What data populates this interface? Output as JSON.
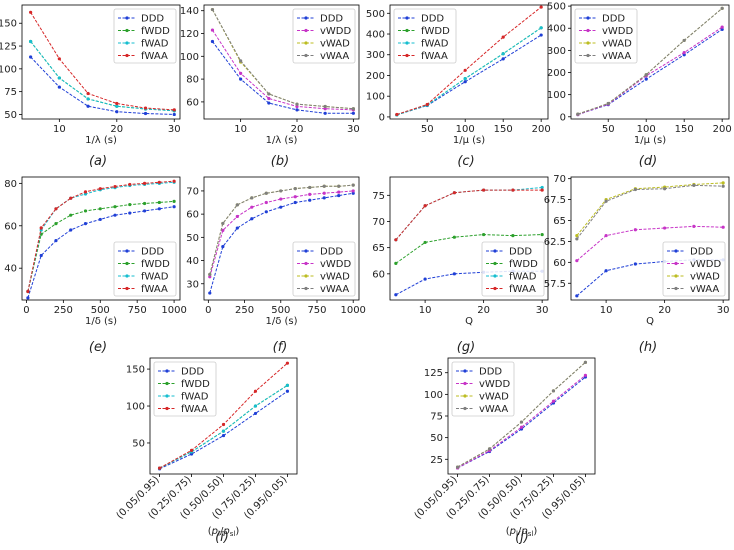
{
  "legend_sets": {
    "f": [
      "DDD",
      "fWDD",
      "fWAD",
      "fWAA"
    ],
    "v": [
      "DDD",
      "vWDD",
      "vWAD",
      "vWAA"
    ]
  },
  "colors": {
    "DDD": "#1f3fd6",
    "fWDD": "#2ca02c",
    "fWAD": "#17becf",
    "fWAA": "#d62728",
    "vWDD": "#c734c7",
    "vWAD": "#bcbd22",
    "vWAA": "#7f7f7f"
  },
  "chart_data": [
    {
      "id": "a",
      "caption": "(a)",
      "type": "line",
      "xlabel": "1/λ (s)",
      "ylabel": "",
      "xlim": [
        3.5,
        31
      ],
      "ylim": [
        45,
        170
      ],
      "xticks": [
        10,
        20,
        30
      ],
      "yticks": [
        50,
        75,
        100,
        125,
        150
      ],
      "x": [
        5,
        10,
        15,
        20,
        25,
        30
      ],
      "legend": "top-right",
      "legend_set": "f",
      "series": [
        {
          "name": "DDD",
          "values": [
            113,
            80,
            59,
            53,
            51,
            50
          ]
        },
        {
          "name": "fWDD",
          "values": [
            130,
            90,
            67,
            59,
            56,
            54
          ]
        },
        {
          "name": "fWAD",
          "values": [
            130,
            90,
            67,
            59,
            56,
            54
          ]
        },
        {
          "name": "fWAA",
          "values": [
            162,
            111,
            73,
            62,
            57,
            55
          ]
        }
      ]
    },
    {
      "id": "b",
      "caption": "(b)",
      "type": "line",
      "xlabel": "1/λ (s)",
      "ylabel": "",
      "xlim": [
        3.5,
        31
      ],
      "ylim": [
        45,
        145
      ],
      "xticks": [
        10,
        20,
        30
      ],
      "yticks": [
        60,
        80,
        100,
        120,
        140
      ],
      "x": [
        5,
        10,
        15,
        20,
        25,
        30
      ],
      "legend": "top-right",
      "legend_set": "v",
      "series": [
        {
          "name": "DDD",
          "values": [
            113,
            80,
            59,
            53,
            50,
            50
          ]
        },
        {
          "name": "vWDD",
          "values": [
            123,
            85,
            63,
            56,
            54,
            53
          ]
        },
        {
          "name": "vWAD",
          "values": [
            141,
            95,
            67,
            58,
            56,
            54
          ]
        },
        {
          "name": "vWAA",
          "values": [
            141,
            96,
            67,
            58,
            56,
            54
          ]
        }
      ]
    },
    {
      "id": "c",
      "caption": "(c)",
      "type": "line",
      "xlabel": "1/μ (s)",
      "ylabel": "",
      "xlim": [
        1,
        209
      ],
      "ylim": [
        -10,
        540
      ],
      "xticks": [
        50,
        100,
        150,
        200
      ],
      "yticks": [
        0,
        100,
        200,
        300,
        400,
        500
      ],
      "x": [
        10,
        50,
        100,
        150,
        200
      ],
      "legend": "top-left",
      "legend_set": "f",
      "series": [
        {
          "name": "DDD",
          "values": [
            10,
            55,
            170,
            280,
            395
          ]
        },
        {
          "name": "fWDD",
          "values": [
            10,
            57,
            185,
            305,
            430
          ]
        },
        {
          "name": "fWAD",
          "values": [
            10,
            57,
            185,
            305,
            430
          ]
        },
        {
          "name": "fWAA",
          "values": [
            12,
            60,
            225,
            385,
            530
          ]
        }
      ]
    },
    {
      "id": "d",
      "caption": "(d)",
      "type": "line",
      "xlabel": "1/μ (s)",
      "ylabel": "",
      "xlim": [
        1,
        209
      ],
      "ylim": [
        -10,
        505
      ],
      "xticks": [
        50,
        100,
        150,
        200
      ],
      "yticks": [
        0,
        100,
        200,
        300,
        400,
        500
      ],
      "x": [
        10,
        50,
        100,
        150,
        200
      ],
      "legend": "top-left",
      "legend_set": "v",
      "series": [
        {
          "name": "DDD",
          "values": [
            10,
            55,
            170,
            280,
            395
          ]
        },
        {
          "name": "vWDD",
          "values": [
            10,
            57,
            185,
            290,
            405
          ]
        },
        {
          "name": "vWAD",
          "values": [
            12,
            60,
            190,
            345,
            490
          ]
        },
        {
          "name": "vWAA",
          "values": [
            12,
            60,
            190,
            345,
            490
          ]
        }
      ]
    },
    {
      "id": "e",
      "caption": "(e)",
      "type": "line",
      "xlabel": "1/δ (s)",
      "ylabel": "",
      "xlim": [
        -30,
        1040
      ],
      "ylim": [
        25,
        83
      ],
      "xticks": [
        0,
        250,
        500,
        750,
        1000
      ],
      "yticks": [
        40,
        60,
        80
      ],
      "x": [
        10,
        100,
        200,
        300,
        400,
        500,
        600,
        700,
        800,
        900,
        1000
      ],
      "legend": "bottom-right",
      "legend_set": "f",
      "series": [
        {
          "name": "DDD",
          "values": [
            26,
            46,
            53,
            58,
            61,
            63,
            65,
            66,
            67,
            68,
            69
          ]
        },
        {
          "name": "fWDD",
          "values": [
            29,
            56,
            61,
            65,
            67,
            68,
            69,
            70,
            70.5,
            71,
            71.5
          ]
        },
        {
          "name": "fWAD",
          "values": [
            29,
            58,
            68,
            73,
            75,
            77,
            78,
            79,
            79.5,
            80,
            80.5
          ]
        },
        {
          "name": "fWAA",
          "values": [
            29,
            59,
            68,
            73,
            76,
            77.5,
            78.5,
            79.5,
            80,
            80.5,
            81
          ]
        }
      ]
    },
    {
      "id": "f",
      "caption": "(f)",
      "type": "line",
      "xlabel": "1/δ (s)",
      "ylabel": "",
      "xlim": [
        -30,
        1040
      ],
      "ylim": [
        23,
        76
      ],
      "xticks": [
        0,
        250,
        500,
        750,
        1000
      ],
      "yticks": [
        30,
        40,
        50,
        60,
        70
      ],
      "x": [
        10,
        100,
        200,
        300,
        400,
        500,
        600,
        700,
        800,
        900,
        1000
      ],
      "legend": "bottom-right",
      "legend_set": "v",
      "series": [
        {
          "name": "DDD",
          "values": [
            26,
            46,
            54,
            58,
            61,
            63,
            65,
            66,
            67,
            68,
            69
          ]
        },
        {
          "name": "vWDD",
          "values": [
            33,
            53,
            59,
            63,
            65,
            66.5,
            67.5,
            68.5,
            69,
            69.5,
            70
          ]
        },
        {
          "name": "vWAD",
          "values": [
            34,
            56,
            64,
            67,
            69,
            70,
            71,
            71.5,
            72,
            72,
            72.5
          ]
        },
        {
          "name": "vWAA",
          "values": [
            34,
            56,
            64,
            67,
            69,
            70,
            71,
            71.5,
            72,
            72,
            72.5
          ]
        }
      ]
    },
    {
      "id": "g",
      "caption": "(g)",
      "type": "line",
      "xlabel": "Q",
      "ylabel": "",
      "xlim": [
        4,
        31
      ],
      "ylim": [
        55,
        78.5
      ],
      "xticks": [
        10,
        20,
        30
      ],
      "yticks": [
        60,
        65,
        70,
        75
      ],
      "x": [
        5,
        10,
        15,
        20,
        25,
        30
      ],
      "legend": "bottom-right",
      "legend_set": "f",
      "series": [
        {
          "name": "DDD",
          "values": [
            56,
            59,
            60,
            60.3,
            60.5,
            60.5
          ]
        },
        {
          "name": "fWDD",
          "values": [
            62,
            66,
            67,
            67.5,
            67.3,
            67.5
          ]
        },
        {
          "name": "fWAD",
          "values": [
            66.5,
            73,
            75.5,
            76,
            76,
            76.5
          ]
        },
        {
          "name": "fWAA",
          "values": [
            66.5,
            73,
            75.5,
            76,
            76,
            76
          ]
        }
      ]
    },
    {
      "id": "h",
      "caption": "(h)",
      "type": "line",
      "xlabel": "Q",
      "ylabel": "",
      "xlim": [
        4,
        31
      ],
      "ylim": [
        55.5,
        70.2
      ],
      "xticks": [
        10,
        20,
        30
      ],
      "yticks": [
        57.5,
        60.0,
        62.5,
        65.0,
        67.5,
        70.0
      ],
      "x": [
        5,
        10,
        15,
        20,
        25,
        30
      ],
      "legend": "bottom-right",
      "legend_set": "v",
      "series": [
        {
          "name": "DDD",
          "values": [
            56,
            59,
            59.8,
            60.1,
            60.3,
            60.3
          ]
        },
        {
          "name": "vWDD",
          "values": [
            60.2,
            63.2,
            63.9,
            64.1,
            64.3,
            64.2
          ]
        },
        {
          "name": "vWAD",
          "values": [
            63.2,
            67.5,
            68.8,
            69,
            69.3,
            69.5
          ]
        },
        {
          "name": "vWAA",
          "values": [
            62.8,
            67.3,
            68.7,
            68.8,
            69.2,
            69.1
          ]
        }
      ]
    },
    {
      "id": "i",
      "caption": "(i)",
      "type": "line",
      "xlabel": "(p_l/p_{sl})",
      "ylabel": "",
      "xlim": [
        -0.3,
        4.3
      ],
      "ylim": [
        8,
        165
      ],
      "xticks": [
        0,
        1,
        2,
        3,
        4
      ],
      "yticks": [
        50,
        100,
        150
      ],
      "xticklabels": [
        "(0.05/0.95)",
        "(0.25/0.75)",
        "(0.50/0.50)",
        "(0.75/0.25)",
        "(0.95/0.05)"
      ],
      "x": [
        0,
        1,
        2,
        3,
        4
      ],
      "legend": "top-left",
      "legend_set": "f",
      "series": [
        {
          "name": "DDD",
          "values": [
            15,
            35,
            60,
            90,
            120
          ]
        },
        {
          "name": "fWDD",
          "values": [
            16,
            38,
            66,
            100,
            128
          ]
        },
        {
          "name": "fWAD",
          "values": [
            16,
            38,
            66,
            100,
            128
          ]
        },
        {
          "name": "fWAA",
          "values": [
            16,
            40,
            75,
            120,
            158
          ]
        }
      ]
    },
    {
      "id": "j",
      "caption": "(j)",
      "type": "line",
      "xlabel": "(p_l/p_{sl})",
      "ylabel": "",
      "xlim": [
        -0.3,
        4.3
      ],
      "ylim": [
        8,
        142
      ],
      "xticks": [
        0,
        1,
        2,
        3,
        4
      ],
      "yticks": [
        25,
        50,
        75,
        100,
        125
      ],
      "xticklabels": [
        "(0.05/0.95)",
        "(0.25/0.75)",
        "(0.50/0.50)",
        "(0.75/0.25)",
        "(0.95/0.05)"
      ],
      "x": [
        0,
        1,
        2,
        3,
        4
      ],
      "legend": "top-left",
      "legend_set": "v",
      "series": [
        {
          "name": "DDD",
          "values": [
            15,
            34,
            60,
            90,
            120
          ]
        },
        {
          "name": "vWDD",
          "values": [
            15,
            35,
            62,
            92,
            122
          ]
        },
        {
          "name": "vWAD",
          "values": [
            16,
            37,
            68,
            104,
            137
          ]
        },
        {
          "name": "vWAA",
          "values": [
            16,
            37,
            68,
            104,
            137
          ]
        }
      ]
    }
  ]
}
